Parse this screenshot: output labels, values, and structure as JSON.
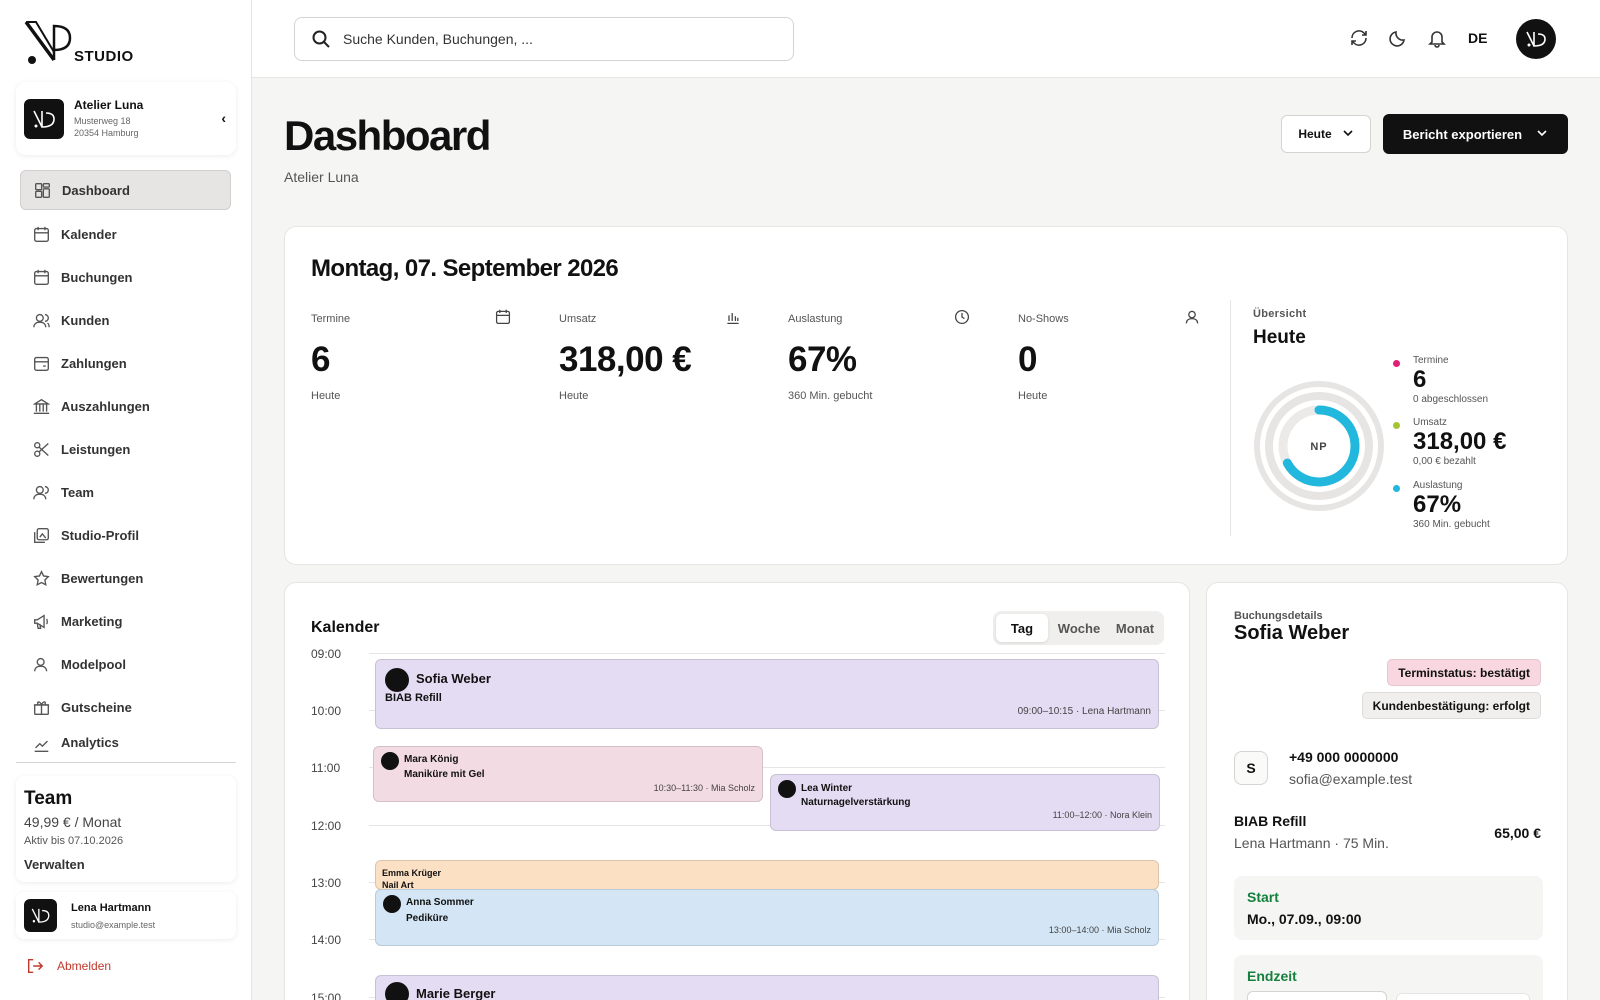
{
  "brand": {
    "logo_text": "STUDIO"
  },
  "studio": {
    "name": "Atelier Luna",
    "street": "Musterweg 18",
    "city": "20354 Hamburg"
  },
  "nav": {
    "items": [
      {
        "label": "Dashboard",
        "icon": "grid-icon",
        "active": true
      },
      {
        "label": "Kalender",
        "icon": "calendar-icon"
      },
      {
        "label": "Buchungen",
        "icon": "calendar-check-icon"
      },
      {
        "label": "Kunden",
        "icon": "users-icon"
      },
      {
        "label": "Zahlungen",
        "icon": "wallet-icon"
      },
      {
        "label": "Auszahlungen",
        "icon": "bank-icon"
      },
      {
        "label": "Leistungen",
        "icon": "scissors-icon"
      },
      {
        "label": "Team",
        "icon": "team-icon"
      },
      {
        "label": "Studio-Profil",
        "icon": "image-icon"
      },
      {
        "label": "Bewertungen",
        "icon": "star-icon"
      },
      {
        "label": "Marketing",
        "icon": "megaphone-icon"
      },
      {
        "label": "Modelpool",
        "icon": "user-icon"
      },
      {
        "label": "Gutscheine",
        "icon": "gift-icon"
      },
      {
        "label": "Analytics",
        "icon": "chart-icon"
      }
    ]
  },
  "plan": {
    "title": "Team",
    "price": "49,99 € / Monat",
    "active_until": "Aktiv bis 07.10.2026",
    "manage": "Verwalten"
  },
  "user": {
    "name": "Lena Hartmann",
    "email": "studio@example.test"
  },
  "logout": "Abmelden",
  "topbar": {
    "search_placeholder": "Suche Kunden, Buchungen, ...",
    "lang": "DE"
  },
  "header": {
    "title": "Dashboard",
    "subtitle": "Atelier Luna",
    "range": "Heute",
    "export": "Bericht exportieren"
  },
  "stats": {
    "date": "Montag, 07. September 2026",
    "items": [
      {
        "label": "Termine",
        "value": "6",
        "sub": "Heute",
        "icon": "calendar-icon"
      },
      {
        "label": "Umsatz",
        "value": "318,00 €",
        "sub": "Heute",
        "icon": "bar-chart-icon"
      },
      {
        "label": "Auslastung",
        "value": "67%",
        "sub": "360 Min. gebucht",
        "icon": "clock-icon"
      },
      {
        "label": "No-Shows",
        "value": "0",
        "sub": "Heute",
        "icon": "user-icon"
      }
    ]
  },
  "overview": {
    "label": "Übersicht",
    "title": "Heute",
    "ring_center": "NP",
    "utilization_fraction": 0.67,
    "items": [
      {
        "label": "Termine",
        "value": "6",
        "sub": "0 abgeschlossen",
        "color": "#e11d74"
      },
      {
        "label": "Umsatz",
        "value": "318,00 €",
        "sub": "0,00 € bezahlt",
        "color": "#a3c531"
      },
      {
        "label": "Auslastung",
        "value": "67%",
        "sub": "360 Min. gebucht",
        "color": "#22b7dd"
      }
    ]
  },
  "calendar": {
    "title": "Kalender",
    "views": [
      "Tag",
      "Woche",
      "Monat"
    ],
    "hours": [
      "09:00",
      "10:00",
      "11:00",
      "12:00",
      "13:00",
      "14:00",
      "15:00"
    ],
    "events": [
      {
        "name": "Sofia Weber",
        "service": "BIAB Refill",
        "time": "09:00–10:15 · Lena Hartmann",
        "color": "#e4dcf3"
      },
      {
        "name": "Mara König",
        "service": "Maniküre mit Gel",
        "time": "10:30–11:30 · Mia Scholz",
        "color": "#f3dbe4"
      },
      {
        "name": "Lea Winter",
        "service": "Naturnagelverstärkung",
        "time": "11:00–12:00 · Nora Klein",
        "color": "#e4dcf3"
      },
      {
        "name": "Emma Krüger",
        "service": "Nail Art",
        "time": "",
        "color": "#fbe0c4"
      },
      {
        "name": "Anna Sommer",
        "service": "Pediküre",
        "time": "13:00–14:00 · Mia Scholz",
        "color": "#d4e6f5"
      },
      {
        "name": "Marie Berger",
        "service": "",
        "time": "",
        "color": "#e4dcf3"
      }
    ]
  },
  "booking": {
    "label": "Buchungsdetails",
    "name": "Sofia Weber",
    "status": "Terminstatus: bestätigt",
    "status_color": "#f8d7e0",
    "confirmation": "Kundenbestätigung: erfolgt",
    "confirmation_color": "#f0efee",
    "initial": "S",
    "phone": "+49 000 0000000",
    "email": "sofia@example.test",
    "service": "BIAB Refill",
    "meta": "Lena Hartmann · 75 Min.",
    "price": "65,00 €",
    "start_label": "Start",
    "start_value": "Mo., 07.09., 09:00",
    "end_label": "Endzeit"
  }
}
